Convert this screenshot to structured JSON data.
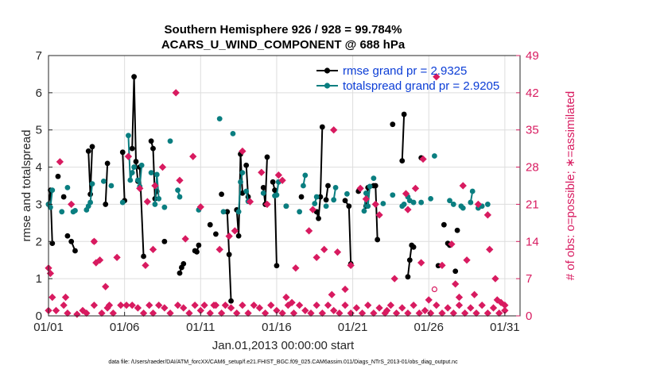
{
  "colors": {
    "rmse": "#000000",
    "spread": "#0a7e80",
    "obs": "#d81b60",
    "legend_text": "#0b3dd6",
    "grid": "#dddddd"
  },
  "chart_data": {
    "type": "line",
    "title": [
      "Southern Hemisphere 926 / 928 = 99.784%",
      "ACARS_U_WIND_COMPONENT @ 688 hPa"
    ],
    "xlabel": "Jan.01,2013 00:00:00 start",
    "ylabel": "rmse and totalspread",
    "ylabel_right": "# of obs: o=possible; ∗=assimilated",
    "footer": "data file: /Users/raeder/DAI/ATM_forcXX/CAM6_setup/f.e21.FHIST_BGC.f09_025.CAM6assim.011/Diags_NTrS_2013-01/obs_diag_output.nc",
    "xlim": [
      1,
      32
    ],
    "ylim": [
      0,
      7
    ],
    "ylim_right": [
      0,
      49
    ],
    "x_ticks": [
      1,
      6,
      11,
      16,
      21,
      26,
      31
    ],
    "x_tick_labels": [
      "01/01",
      "01/06",
      "01/11",
      "01/16",
      "01/21",
      "01/26",
      "01/31"
    ],
    "y_ticks": [
      0,
      1,
      2,
      3,
      4,
      5,
      6,
      7
    ],
    "y_tick_labels": [
      "0",
      "1",
      "2",
      "3",
      "4",
      "5",
      "6",
      "7"
    ],
    "y_right_ticks": [
      0,
      7,
      14,
      21,
      28,
      35,
      42,
      49
    ],
    "y_right_tick_labels": [
      "0",
      "7",
      "14",
      "21",
      "28",
      "35",
      "42",
      "49"
    ],
    "legend": [
      {
        "name": "rmse grand pr = 2.9325"
      },
      {
        "name": "totalspread grand pr = 2.9205"
      }
    ],
    "rmse": [
      [
        [
          1.0,
          3.0
        ],
        [
          1.125,
          3.38
        ],
        [
          1.25,
          1.95
        ]
      ],
      [
        [
          1.625,
          3.75
        ]
      ],
      [
        [
          2.0,
          3.2
        ]
      ],
      [
        [
          2.25,
          2.15
        ]
      ],
      [
        [
          2.5,
          2.0
        ],
        [
          2.75,
          1.75
        ]
      ],
      [
        [
          3.625,
          4.43
        ],
        [
          3.75,
          3.27
        ],
        [
          3.875,
          4.55
        ]
      ],
      [
        [
          4.75,
          3.0
        ],
        [
          4.875,
          4.1
        ]
      ],
      [
        [
          5.875,
          4.4
        ],
        [
          6.0,
          3.1
        ]
      ],
      [
        [
          6.5,
          4.5
        ],
        [
          6.625,
          6.43
        ],
        [
          6.75,
          4.15
        ],
        [
          6.875,
          3.62
        ]
      ],
      [
        [
          7.0,
          4.0
        ],
        [
          7.25,
          1.6
        ]
      ],
      [
        [
          7.75,
          4.7
        ],
        [
          7.875,
          4.5
        ],
        [
          8.0,
          3.15
        ],
        [
          8.125,
          3.35
        ]
      ],
      [
        [
          8.625,
          2.0
        ]
      ],
      [
        [
          9.625,
          1.15
        ],
        [
          9.75,
          1.3
        ],
        [
          9.875,
          1.4
        ]
      ],
      [
        [
          10.625,
          1.75
        ],
        [
          10.75,
          1.72
        ],
        [
          10.875,
          1.9
        ]
      ],
      [
        [
          11.625,
          2.45
        ]
      ],
      [
        [
          12.0,
          2.2
        ]
      ],
      [
        [
          12.375,
          3.27
        ]
      ],
      [
        [
          12.75,
          2.8
        ],
        [
          12.875,
          1.65
        ],
        [
          13.0,
          0.4
        ]
      ],
      [
        [
          13.375,
          2.85
        ],
        [
          13.5,
          2.15
        ],
        [
          13.625,
          4.35
        ],
        [
          13.75,
          3.3
        ]
      ],
      [
        [
          14.0,
          4.05
        ],
        [
          14.125,
          3.2
        ]
      ],
      [
        [
          15.125,
          3.45
        ],
        [
          15.25,
          3.0
        ],
        [
          15.375,
          4.27
        ]
      ],
      [
        [
          15.75,
          3.6
        ],
        [
          15.875,
          3.38
        ],
        [
          16.0,
          1.35
        ]
      ],
      [
        [
          16.625,
          2.95
        ]
      ],
      [
        [
          17.625,
          3.2
        ]
      ],
      [
        [
          18.625,
          2.8
        ],
        [
          18.75,
          2.62
        ],
        [
          18.875,
          3.2
        ],
        [
          19.0,
          5.08
        ]
      ],
      [
        [
          19.25,
          3.12
        ],
        [
          19.375,
          3.5
        ]
      ],
      [
        [
          20.5,
          3.1
        ],
        [
          20.75,
          2.95
        ],
        [
          20.875,
          1.4
        ]
      ],
      [
        [
          21.375,
          3.35
        ]
      ],
      [
        [
          21.875,
          2.95
        ],
        [
          22.0,
          3.45
        ]
      ],
      [
        [
          22.375,
          3.5
        ],
        [
          22.5,
          3.5
        ],
        [
          22.625,
          2.05
        ]
      ],
      [
        [
          23.625,
          5.15
        ]
      ],
      [
        [
          24.25,
          4.17
        ],
        [
          24.375,
          5.42
        ]
      ],
      [
        [
          24.625,
          1.05
        ],
        [
          24.75,
          1.5
        ],
        [
          24.875,
          1.9
        ]
      ],
      [
        [
          25.0,
          1.85
        ]
      ],
      [
        [
          25.5,
          4.25
        ]
      ],
      [
        [
          26.625,
          1.35
        ]
      ],
      [
        [
          27.0,
          2.45
        ]
      ],
      [
        [
          27.25,
          1.95
        ],
        [
          27.375,
          1.9
        ]
      ],
      [
        [
          27.75,
          1.2
        ]
      ],
      [
        [
          27.875,
          2.3
        ]
      ]
    ],
    "totalspread": [
      [
        [
          1.0,
          3.0
        ],
        [
          1.125,
          2.92
        ],
        [
          1.25,
          3.38
        ]
      ],
      [
        [
          1.875,
          2.8
        ]
      ],
      [
        [
          2.25,
          3.45
        ]
      ],
      [
        [
          2.625,
          2.8
        ],
        [
          2.75,
          2.83
        ]
      ],
      [
        [
          3.5,
          2.85
        ],
        [
          3.625,
          2.95
        ],
        [
          3.75,
          3.05
        ],
        [
          3.875,
          3.55
        ]
      ],
      [
        [
          4.625,
          3.62
        ]
      ],
      [
        [
          5.125,
          3.5
        ]
      ],
      [
        [
          5.875,
          3.05
        ]
      ],
      [
        [
          6.25,
          4.85
        ],
        [
          6.375,
          3.65
        ],
        [
          6.5,
          3.85
        ],
        [
          6.625,
          4.0
        ]
      ],
      [
        [
          6.875,
          3.65
        ],
        [
          7.0,
          3.48
        ],
        [
          7.125,
          4.05
        ]
      ],
      [
        [
          7.75,
          3.85
        ]
      ],
      [
        [
          8.0,
          3.0
        ],
        [
          8.125,
          3.8
        ],
        [
          8.25,
          3.15
        ]
      ],
      [
        [
          8.625,
          2.92
        ]
      ],
      [
        [
          9.0,
          4.7
        ]
      ],
      [
        [
          9.5,
          3.38
        ],
        [
          9.625,
          3.2
        ]
      ],
      [
        [
          10.875,
          2.85
        ]
      ],
      [
        [
          12.25,
          5.3
        ]
      ],
      [
        [
          12.5,
          2.8
        ]
      ],
      [
        [
          13.125,
          4.9
        ]
      ],
      [
        [
          13.5,
          2.8
        ],
        [
          13.625,
          3.6
        ],
        [
          13.75,
          3.85
        ]
      ],
      [
        [
          14.0,
          3.35
        ],
        [
          14.125,
          3.08
        ]
      ],
      [
        [
          15.125,
          3.3
        ]
      ],
      [
        [
          15.875,
          3.23
        ],
        [
          16.0,
          3.25
        ],
        [
          16.125,
          3.6
        ]
      ],
      [
        [
          16.625,
          2.95
        ]
      ],
      [
        [
          17.5,
          2.8
        ]
      ],
      [
        [
          17.75,
          3.5
        ],
        [
          17.875,
          3.78
        ]
      ],
      [
        [
          18.5,
          3.02
        ],
        [
          18.625,
          3.2
        ]
      ],
      [
        [
          19.25,
          2.95
        ]
      ],
      [
        [
          19.75,
          3.12
        ],
        [
          19.875,
          3.45
        ]
      ],
      [
        [
          20.625,
          3.28
        ]
      ],
      [
        [
          21.75,
          2.82
        ],
        [
          21.875,
          3.3
        ],
        [
          22.0,
          2.95
        ],
        [
          22.125,
          3.48
        ]
      ],
      [
        [
          22.375,
          3.7
        ]
      ],
      [
        [
          23.0,
          3.02
        ]
      ],
      [
        [
          23.625,
          3.25
        ]
      ],
      [
        [
          24.25,
          2.95
        ],
        [
          24.375,
          3.0
        ]
      ],
      [
        [
          24.625,
          3.2
        ],
        [
          24.75,
          3.1
        ]
      ],
      [
        [
          25.0,
          3.05
        ]
      ],
      [
        [
          25.5,
          3.05
        ]
      ],
      [
        [
          26.125,
          3.15
        ]
      ],
      [
        [
          26.375,
          4.3
        ]
      ],
      [
        [
          27.375,
          3.1
        ],
        [
          27.625,
          3.0
        ]
      ],
      [
        [
          28.125,
          2.95
        ],
        [
          28.25,
          2.9
        ]
      ],
      [
        [
          28.75,
          3.05
        ],
        [
          28.875,
          3.35
        ]
      ],
      [
        [
          29.25,
          2.9
        ],
        [
          29.5,
          2.95
        ]
      ],
      [
        [
          29.875,
          3.0
        ]
      ]
    ],
    "obs_possible": [
      [
        1,
        9
      ],
      [
        1.125,
        8
      ],
      [
        1.25,
        3.5
      ],
      [
        1.75,
        29
      ],
      [
        2.125,
        3.5
      ],
      [
        2.5,
        21
      ],
      [
        4.0,
        14
      ],
      [
        4.125,
        10
      ],
      [
        4.375,
        10.5
      ],
      [
        4.75,
        5.5
      ],
      [
        5.0,
        2
      ],
      [
        5.5,
        11
      ],
      [
        6.25,
        30
      ],
      [
        7.0,
        24
      ],
      [
        7.375,
        9.5
      ],
      [
        7.5,
        21.5
      ],
      [
        7.875,
        12.5
      ],
      [
        8.0,
        24.5
      ],
      [
        8.5,
        28
      ],
      [
        9.375,
        42
      ],
      [
        9.625,
        25.5
      ],
      [
        10.0,
        14.5
      ],
      [
        10.5,
        30
      ],
      [
        11.0,
        20.5
      ],
      [
        11.875,
        2
      ],
      [
        12.25,
        12.5
      ],
      [
        12.875,
        15
      ],
      [
        13.25,
        16
      ],
      [
        13.75,
        31
      ],
      [
        14.25,
        21.5
      ],
      [
        15.0,
        27
      ],
      [
        15.375,
        21
      ],
      [
        16.125,
        26.5
      ],
      [
        16.375,
        25.5
      ],
      [
        16.625,
        3.5
      ],
      [
        17.0,
        2.5
      ],
      [
        17.25,
        9
      ],
      [
        18.125,
        16
      ],
      [
        18.375,
        20
      ],
      [
        18.625,
        11
      ],
      [
        19.125,
        12.5
      ],
      [
        19.625,
        4
      ],
      [
        19.75,
        35
      ],
      [
        20.0,
        12
      ],
      [
        20.5,
        5
      ],
      [
        20.875,
        9.5
      ],
      [
        21.5,
        24
      ],
      [
        21.875,
        22
      ],
      [
        22.5,
        21
      ],
      [
        22.75,
        19
      ],
      [
        23.25,
        1
      ],
      [
        23.75,
        7
      ],
      [
        24.5,
        23
      ],
      [
        24.625,
        20
      ],
      [
        25.125,
        24
      ],
      [
        25.5,
        10
      ],
      [
        25.625,
        29.5
      ],
      [
        26.0,
        3
      ],
      [
        26.5,
        45
      ],
      [
        26.875,
        9.5
      ],
      [
        27.5,
        13.5
      ],
      [
        27.75,
        6
      ],
      [
        28.0,
        3.5
      ],
      [
        28.25,
        24.5
      ],
      [
        28.5,
        10.5
      ],
      [
        29.0,
        4
      ],
      [
        29.25,
        21
      ],
      [
        29.875,
        19
      ],
      [
        30.0,
        12.5
      ],
      [
        30.375,
        7
      ],
      [
        30.5,
        3
      ],
      [
        30.75,
        2.5
      ],
      [
        31.0,
        1
      ]
    ],
    "obs_assimilated": [
      [
        1.0,
        1
      ],
      [
        1.5,
        1
      ],
      [
        2.0,
        2
      ],
      [
        2.25,
        0.5
      ],
      [
        2.875,
        0.3
      ],
      [
        3.25,
        1
      ],
      [
        3.5,
        0.5
      ],
      [
        4.0,
        2
      ],
      [
        4.5,
        0.5
      ],
      [
        4.875,
        1.5
      ],
      [
        5.25,
        0.5
      ],
      [
        5.75,
        2
      ],
      [
        6.125,
        2
      ],
      [
        6.5,
        2
      ],
      [
        6.875,
        1.5
      ],
      [
        7.25,
        0.5
      ],
      [
        7.625,
        2
      ],
      [
        7.875,
        0.5
      ],
      [
        8.25,
        2
      ],
      [
        8.625,
        1.5
      ],
      [
        9.0,
        0.5
      ],
      [
        9.5,
        2
      ],
      [
        9.875,
        1.5
      ],
      [
        10.25,
        0.5
      ],
      [
        10.625,
        2
      ],
      [
        11.0,
        1
      ],
      [
        11.25,
        2
      ],
      [
        11.625,
        0.5
      ],
      [
        12.0,
        2
      ],
      [
        12.375,
        0.5
      ],
      [
        12.625,
        2
      ],
      [
        13.0,
        1.5
      ],
      [
        13.375,
        0.5
      ],
      [
        13.75,
        2
      ],
      [
        14.125,
        0.5
      ],
      [
        14.5,
        2
      ],
      [
        14.875,
        1.5
      ],
      [
        15.25,
        0.5
      ],
      [
        15.625,
        2
      ],
      [
        16.0,
        1
      ],
      [
        16.375,
        0.5
      ],
      [
        16.75,
        2
      ],
      [
        17.125,
        0.5
      ],
      [
        17.5,
        2
      ],
      [
        17.875,
        1
      ],
      [
        18.25,
        0.5
      ],
      [
        18.625,
        2
      ],
      [
        19.0,
        0.5
      ],
      [
        19.375,
        2
      ],
      [
        19.75,
        1
      ],
      [
        20.125,
        0.5
      ],
      [
        20.5,
        2
      ],
      [
        20.875,
        0.5
      ],
      [
        21.25,
        1.5
      ],
      [
        21.625,
        0.5
      ],
      [
        22.0,
        2
      ],
      [
        22.375,
        0.5
      ],
      [
        22.75,
        1.5
      ],
      [
        23.125,
        0.5
      ],
      [
        23.5,
        2
      ],
      [
        23.875,
        0.5
      ],
      [
        24.25,
        1.5
      ],
      [
        24.625,
        0.5
      ],
      [
        25.0,
        2
      ],
      [
        25.375,
        0.5
      ],
      [
        25.75,
        1
      ],
      [
        26.125,
        0.5
      ],
      [
        26.5,
        2
      ],
      [
        26.875,
        0.5
      ],
      [
        27.25,
        1.5
      ],
      [
        27.625,
        0.5
      ],
      [
        28.0,
        2
      ],
      [
        28.375,
        0.5
      ],
      [
        28.75,
        1.5
      ],
      [
        29.125,
        0.5
      ],
      [
        29.5,
        2
      ],
      [
        29.875,
        0.5
      ],
      [
        30.25,
        1.5
      ],
      [
        30.625,
        0.5
      ],
      [
        31.0,
        2
      ]
    ],
    "obs_open_markers": [
      [
        4.0,
        14
      ],
      [
        26.375,
        5
      ]
    ]
  }
}
